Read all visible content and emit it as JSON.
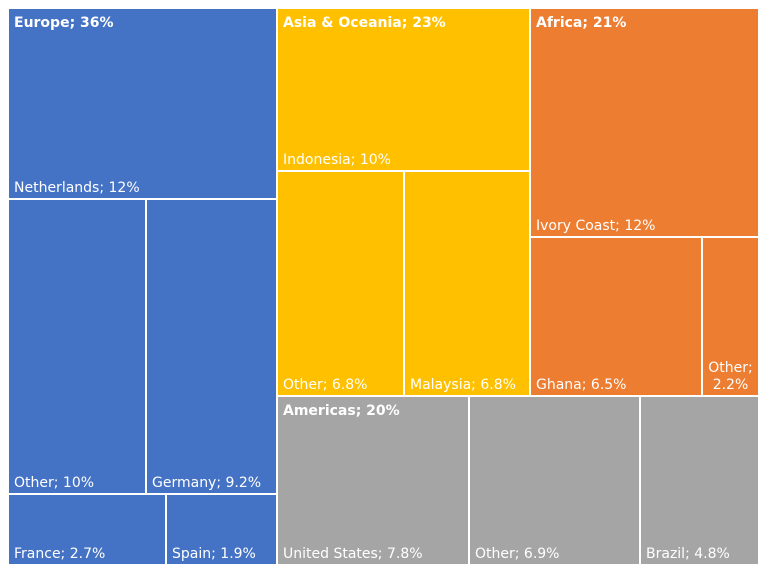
{
  "chart_data": {
    "type": "treemap",
    "groups": [
      {
        "name": "Europe",
        "label": "Europe; 36%",
        "value": 36,
        "color": "#4472C4",
        "items": [
          {
            "name": "Netherlands",
            "label": "Netherlands; 12%",
            "value": 12
          },
          {
            "name": "Other",
            "label": "Other; 10%",
            "value": 10
          },
          {
            "name": "Germany",
            "label": "Germany; 9.2%",
            "value": 9.2
          },
          {
            "name": "France",
            "label": "France; 2.7%",
            "value": 2.7
          },
          {
            "name": "Spain",
            "label": "Spain; 1.9%",
            "value": 1.9
          }
        ]
      },
      {
        "name": "Asia & Oceania",
        "label": "Asia & Oceania; 23%",
        "value": 23,
        "color": "#FFC000",
        "items": [
          {
            "name": "Indonesia",
            "label": "Indonesia; 10%",
            "value": 10
          },
          {
            "name": "Other",
            "label": "Other; 6.8%",
            "value": 6.8
          },
          {
            "name": "Malaysia",
            "label": "Malaysia; 6.8%",
            "value": 6.8
          }
        ]
      },
      {
        "name": "Africa",
        "label": "Africa; 21%",
        "value": 21,
        "color": "#ED7D31",
        "items": [
          {
            "name": "Ivory Coast",
            "label": "Ivory Coast; 12%",
            "value": 12
          },
          {
            "name": "Ghana",
            "label": "Ghana; 6.5%",
            "value": 6.5
          },
          {
            "name": "Other",
            "label": "Other;\n2.2%",
            "value": 2.2
          }
        ]
      },
      {
        "name": "Americas",
        "label": "Americas; 20%",
        "value": 20,
        "color": "#A5A5A5",
        "items": [
          {
            "name": "United States",
            "label": "United States; 7.8%",
            "value": 7.8
          },
          {
            "name": "Other",
            "label": "Other; 6.9%",
            "value": 6.9
          },
          {
            "name": "Brazil",
            "label": "Brazil; 4.8%",
            "value": 4.8
          }
        ]
      }
    ]
  }
}
